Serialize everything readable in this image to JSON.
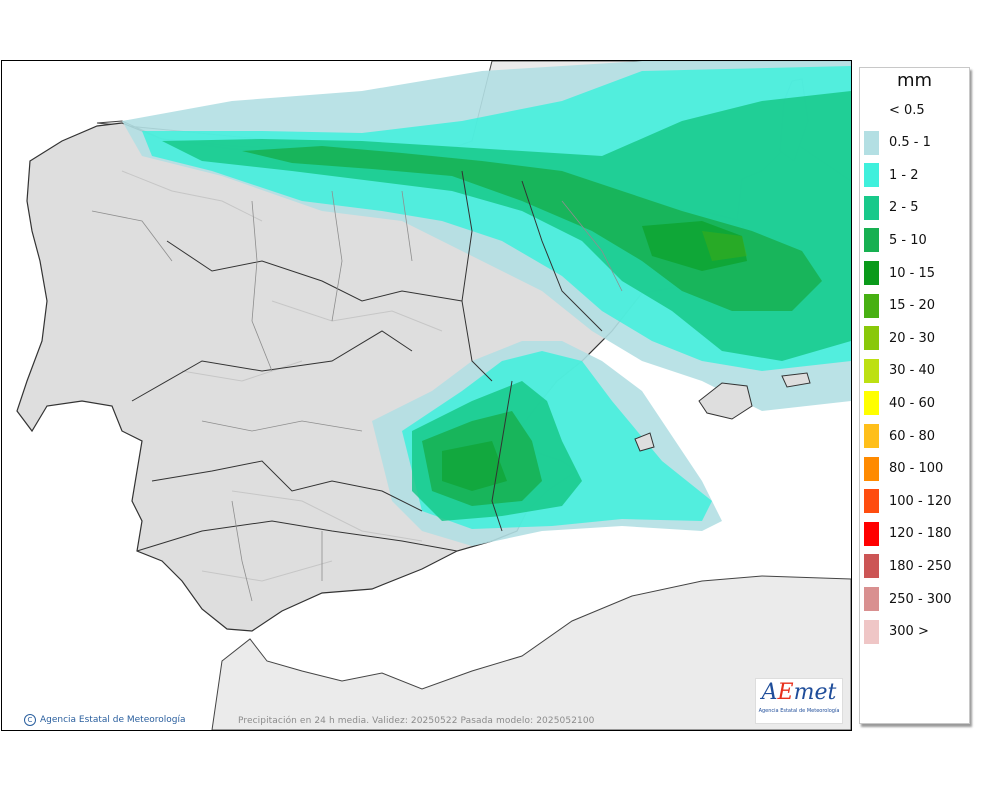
{
  "legend": {
    "unit": "mm",
    "items": [
      {
        "label": "< 0.5",
        "color": "#ffffff"
      },
      {
        "label": "0.5 - 1",
        "color": "#b3dfe3"
      },
      {
        "label": "1 - 2",
        "color": "#3ff0dc"
      },
      {
        "label": "2 - 5",
        "color": "#18c98a"
      },
      {
        "label": "5 - 10",
        "color": "#17b051"
      },
      {
        "label": "10 - 15",
        "color": "#0a9a1a"
      },
      {
        "label": "15 - 20",
        "color": "#47b012"
      },
      {
        "label": "20 - 30",
        "color": "#89c80a"
      },
      {
        "label": "30 - 40",
        "color": "#bde012"
      },
      {
        "label": "40 - 60",
        "color": "#ffff00"
      },
      {
        "label": "60 - 80",
        "color": "#ffbf1a"
      },
      {
        "label": "80 - 100",
        "color": "#ff8a00"
      },
      {
        "label": "100 - 120",
        "color": "#ff4d0f"
      },
      {
        "label": "120 - 180",
        "color": "#ff0000"
      },
      {
        "label": "180 - 250",
        "color": "#cc5555"
      },
      {
        "label": "250 - 300",
        "color": "#d99090"
      },
      {
        "label": "300 >",
        "color": "#efc6c6"
      }
    ]
  },
  "footer": {
    "credit": "Agencia Estatal de Meteorología",
    "caption": "Precipitación en 24 h media. Validez: 20250522 Pasada modelo: 2025052100",
    "logo_word_a": "A",
    "logo_word_e": "E",
    "logo_word_rest": "met",
    "logo_sub": "Agencia Estatal de Meteorología"
  },
  "colors": {
    "land": "#dedede",
    "relief": "#c9c9c9",
    "sea": "#ffffff",
    "border": "#333333",
    "region_line": "#8e8e8e"
  }
}
